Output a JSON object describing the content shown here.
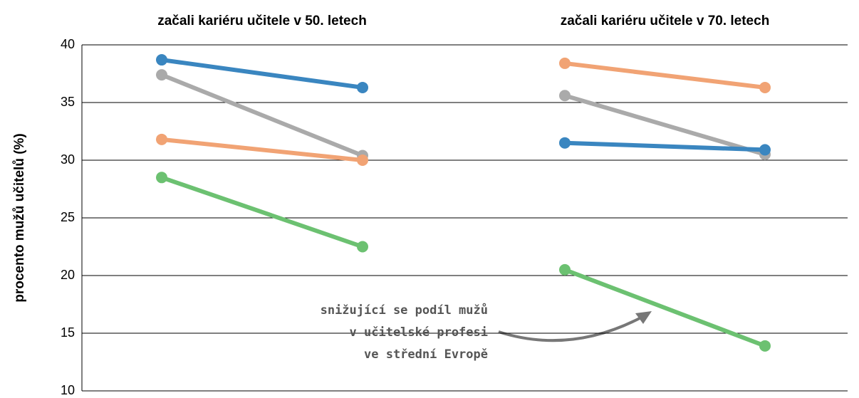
{
  "chart_data": {
    "type": "line",
    "ylabel": "procento mužů učitelů (%)",
    "ylim": [
      10,
      40
    ],
    "yticks": [
      10,
      15,
      20,
      25,
      30,
      35,
      40
    ],
    "grid": true,
    "annotation": [
      "snižující se podíl mužů",
      "v učitelské profesi",
      "ve střední Evropě"
    ],
    "panels": [
      {
        "title": "začali kariéru učitele v 50. letech",
        "categories": [
          null,
          null
        ],
        "series": [
          {
            "color": "#3a86c0",
            "values": [
              38.7,
              36.3
            ]
          },
          {
            "color": "#aaaaaa",
            "values": [
              37.4,
              30.4
            ]
          },
          {
            "color": "#f1a374",
            "values": [
              31.8,
              30.0
            ]
          },
          {
            "color": "#6cc171",
            "values": [
              28.5,
              22.5
            ]
          }
        ]
      },
      {
        "title": "začali kariéru učitele v 70. letech",
        "categories": [
          null,
          null
        ],
        "series": [
          {
            "color": "#f1a374",
            "values": [
              38.4,
              36.3
            ]
          },
          {
            "color": "#aaaaaa",
            "values": [
              35.6,
              30.5
            ]
          },
          {
            "color": "#3a86c0",
            "values": [
              31.5,
              30.9
            ]
          },
          {
            "color": "#6cc171",
            "values": [
              20.5,
              13.9
            ]
          }
        ]
      }
    ]
  }
}
